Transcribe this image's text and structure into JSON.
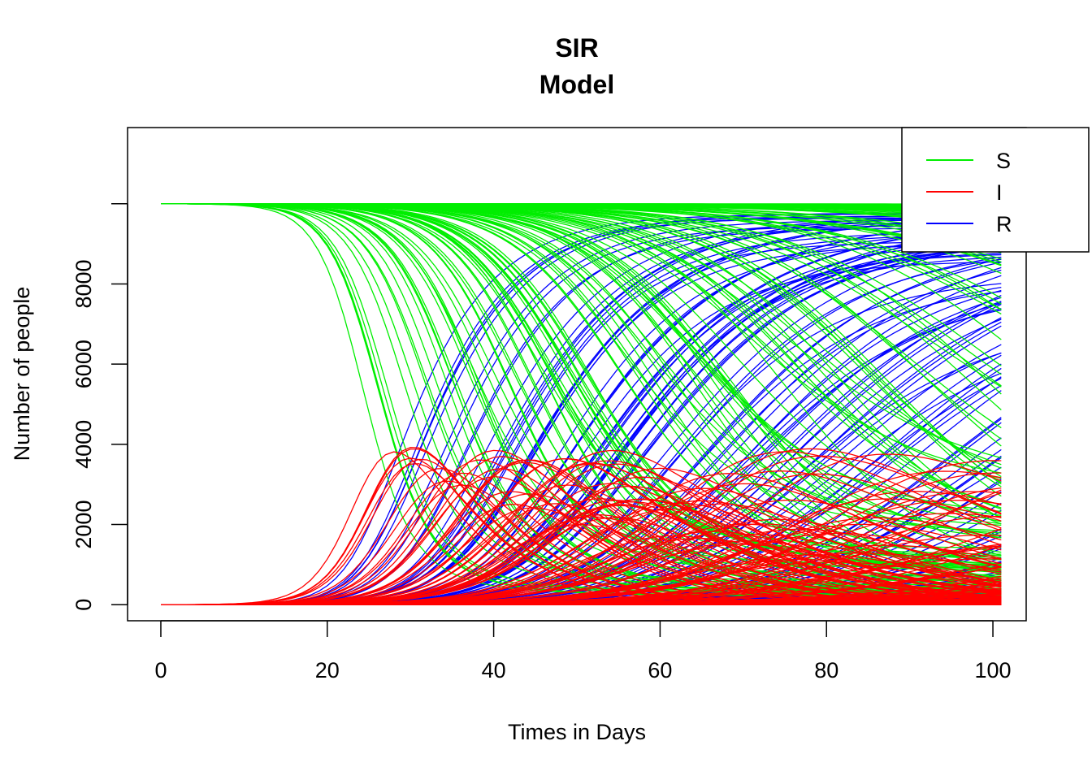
{
  "chart_data": {
    "type": "line",
    "title_line1": "SIR",
    "title_line2": "Model",
    "xlabel": "Times in Days",
    "ylabel": "Number of people",
    "xlim": [
      -4,
      104
    ],
    "ylim": [
      -400,
      11900
    ],
    "x_ticks": [
      0,
      20,
      40,
      60,
      80,
      100
    ],
    "y_ticks": [
      0,
      2000,
      4000,
      6000,
      8000
    ],
    "x_tick_labels": [
      "0",
      "20",
      "40",
      "60",
      "80",
      "100"
    ],
    "y_tick_labels": [
      "0",
      "2000",
      "4000",
      "6000",
      "8000"
    ],
    "grid": false,
    "legend_position": "top-right",
    "population": 10000,
    "t_max": 101,
    "n_simulations": 180,
    "series": [
      {
        "name": "S",
        "color": "#00ee00"
      },
      {
        "name": "I",
        "color": "#ff0000"
      },
      {
        "name": "R",
        "color": "#0000ff"
      }
    ],
    "legend_entries": [
      "S",
      "I",
      "R"
    ]
  }
}
